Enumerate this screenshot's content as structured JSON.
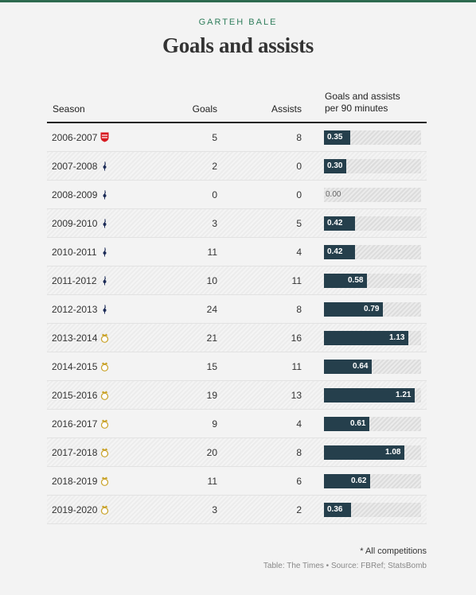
{
  "header": {
    "kicker": "GARTEH BALE",
    "title": "Goals and assists"
  },
  "columns": {
    "season": "Season",
    "goals": "Goals",
    "assists": "Assists",
    "rate_line1": "Goals and assists",
    "rate_line2": "per 90 minutes"
  },
  "colors": {
    "bar": "#253f4c",
    "accent": "#2e7d5b",
    "southampton": "#d71920",
    "tottenham": "#1c2b57",
    "real_madrid": "#c9a227"
  },
  "chart_data": {
    "type": "table",
    "bar_max": 1.3,
    "rows": [
      {
        "season": "2006-2007",
        "club_icon": "southampton-crest-icon",
        "goals": 5,
        "assists": 8,
        "rate": 0.35,
        "rate_label": "0.35"
      },
      {
        "season": "2007-2008",
        "club_icon": "tottenham-crest-icon",
        "goals": 2,
        "assists": 0,
        "rate": 0.3,
        "rate_label": "0.30"
      },
      {
        "season": "2008-2009",
        "club_icon": "tottenham-crest-icon",
        "goals": 0,
        "assists": 0,
        "rate": 0.0,
        "rate_label": "0.00"
      },
      {
        "season": "2009-2010",
        "club_icon": "tottenham-crest-icon",
        "goals": 3,
        "assists": 5,
        "rate": 0.42,
        "rate_label": "0.42"
      },
      {
        "season": "2010-2011",
        "club_icon": "tottenham-crest-icon",
        "goals": 11,
        "assists": 4,
        "rate": 0.42,
        "rate_label": "0.42"
      },
      {
        "season": "2011-2012",
        "club_icon": "tottenham-crest-icon",
        "goals": 10,
        "assists": 11,
        "rate": 0.58,
        "rate_label": "0.58"
      },
      {
        "season": "2012-2013",
        "club_icon": "tottenham-crest-icon",
        "goals": 24,
        "assists": 8,
        "rate": 0.79,
        "rate_label": "0.79"
      },
      {
        "season": "2013-2014",
        "club_icon": "real-madrid-crest-icon",
        "goals": 21,
        "assists": 16,
        "rate": 1.13,
        "rate_label": "1.13"
      },
      {
        "season": "2014-2015",
        "club_icon": "real-madrid-crest-icon",
        "goals": 15,
        "assists": 11,
        "rate": 0.64,
        "rate_label": "0.64"
      },
      {
        "season": "2015-2016",
        "club_icon": "real-madrid-crest-icon",
        "goals": 19,
        "assists": 13,
        "rate": 1.21,
        "rate_label": "1.21"
      },
      {
        "season": "2016-2017",
        "club_icon": "real-madrid-crest-icon",
        "goals": 9,
        "assists": 4,
        "rate": 0.61,
        "rate_label": "0.61"
      },
      {
        "season": "2017-2018",
        "club_icon": "real-madrid-crest-icon",
        "goals": 20,
        "assists": 8,
        "rate": 1.08,
        "rate_label": "1.08"
      },
      {
        "season": "2018-2019",
        "club_icon": "real-madrid-crest-icon",
        "goals": 11,
        "assists": 6,
        "rate": 0.62,
        "rate_label": "0.62"
      },
      {
        "season": "2019-2020",
        "club_icon": "real-madrid-crest-icon",
        "goals": 3,
        "assists": 2,
        "rate": 0.36,
        "rate_label": "0.36"
      }
    ]
  },
  "footer": {
    "note": "* All competitions",
    "source": "Table: The Times • Source: FBRef; StatsBomb"
  }
}
